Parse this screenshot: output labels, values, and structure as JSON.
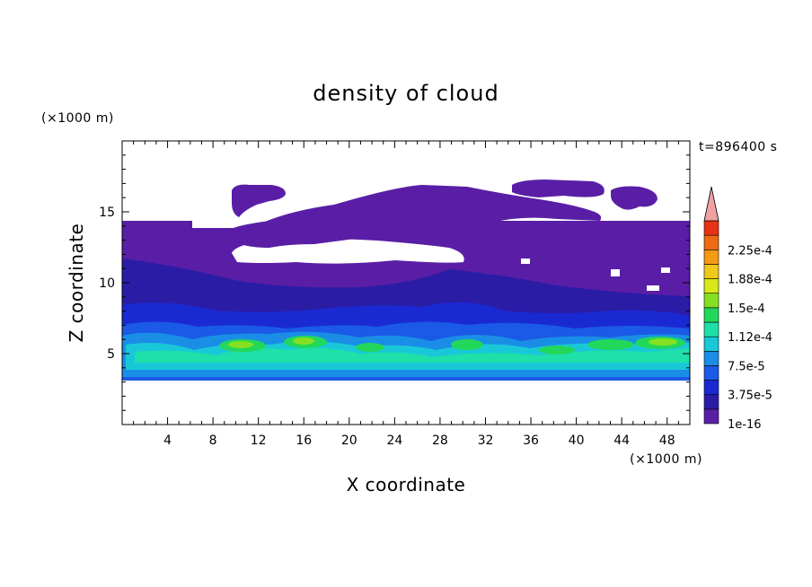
{
  "chart_data": {
    "type": "heatmap",
    "title": "density of cloud",
    "xlabel": "X coordinate",
    "ylabel": "Z coordinate",
    "x_unit": "(×1000 m)",
    "y_unit": "(×1000 m)",
    "time_label": "t=896400 s",
    "xlim": [
      0,
      50
    ],
    "ylim": [
      0,
      20
    ],
    "x_ticks": [
      4,
      8,
      12,
      16,
      20,
      24,
      28,
      32,
      36,
      40,
      44,
      48
    ],
    "y_ticks": [
      5,
      10,
      15
    ],
    "colorbar": {
      "labels": [
        "1e-16",
        "3.75e-5",
        "7.5e-5",
        "1.12e-4",
        "1.5e-4",
        "1.88e-4",
        "2.25e-4"
      ],
      "colors": [
        "#5a1ea6",
        "#2b1ca6",
        "#1a2ad2",
        "#1a5ae6",
        "#1a8ee6",
        "#19c8d8",
        "#1fe0a8",
        "#22d85a",
        "#86e022",
        "#d8e81a",
        "#f0c81a",
        "#f59a14",
        "#f06a14",
        "#e83214"
      ],
      "extend_color": "#f0a0a0"
    },
    "layers": {
      "cloud_base_km": 3.5,
      "cloud_top_km": 14.2,
      "high_cloud_top_km": 17.0,
      "dense_core_km": [
        4.2,
        6.8
      ]
    }
  }
}
